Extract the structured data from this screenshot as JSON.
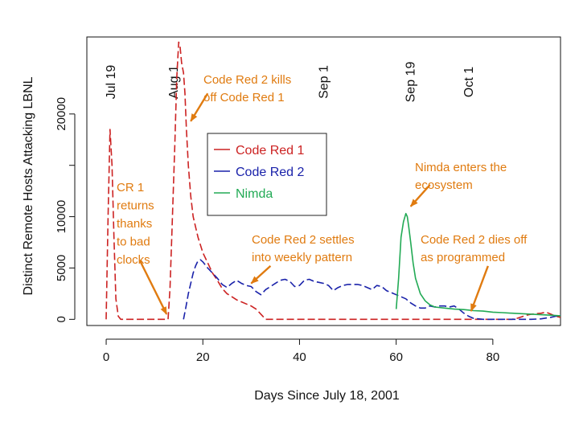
{
  "chart_data": {
    "type": "line",
    "title": "",
    "xlabel": "Days Since July 18, 2001",
    "ylabel": "Distinct Remote Hosts Attacking LBNL",
    "xlim": [
      -4,
      94
    ],
    "ylim": [
      -600,
      27500
    ],
    "x_ticks": [
      0,
      20,
      40,
      60,
      80
    ],
    "y_ticks": [
      0,
      5000,
      10000,
      15000,
      20000
    ],
    "y_tick_labels": [
      "0",
      "5000",
      "10000",
      "",
      "20000"
    ],
    "colors": {
      "axis": "#111111",
      "annotation": "#e07b10",
      "red": "#cc2222",
      "blue": "#1a22aa",
      "green": "#22aa55"
    },
    "series": [
      {
        "name": "Code Red 1",
        "color": "#cc2222",
        "style": "dashed",
        "x": [
          0,
          0.4,
          0.8,
          1.2,
          1.6,
          2.0,
          2.5,
          3,
          5,
          8,
          10,
          12,
          12.8,
          13.2,
          13.6,
          14.2,
          14.6,
          15.0,
          15.3,
          15.6,
          16.0,
          16.3,
          16.6,
          17.0,
          17.5,
          18,
          19,
          20,
          21,
          22,
          23,
          24,
          25,
          26,
          27,
          28,
          29,
          30,
          31,
          32,
          33,
          40,
          50,
          60,
          70,
          80,
          84,
          85,
          86,
          87,
          88,
          89,
          90,
          91,
          92,
          93,
          94
        ],
        "y": [
          0,
          10000,
          18500,
          15000,
          8000,
          2000,
          300,
          0,
          0,
          0,
          0,
          0,
          0,
          3000,
          8500,
          17000,
          23500,
          27000,
          26500,
          25000,
          24000,
          22000,
          18500,
          15000,
          12000,
          10000,
          8000,
          6500,
          5500,
          4500,
          3800,
          3000,
          2500,
          2200,
          1900,
          1700,
          1500,
          1300,
          1000,
          500,
          0,
          0,
          0,
          0,
          0,
          0,
          0,
          100,
          250,
          400,
          500,
          550,
          600,
          700,
          500,
          300,
          200
        ]
      },
      {
        "name": "Code Red 2",
        "color": "#1a22aa",
        "style": "dashed",
        "x": [
          16,
          16.5,
          17,
          17.5,
          18,
          18.5,
          19,
          19.5,
          20,
          20.5,
          21,
          22,
          23,
          24,
          25,
          26,
          27,
          28,
          29,
          30,
          31,
          32,
          33,
          34,
          35,
          36,
          37,
          38,
          39,
          40,
          41,
          42,
          43,
          44,
          45,
          46,
          47,
          48,
          49,
          50,
          51,
          52,
          53,
          54,
          55,
          56,
          57,
          58,
          59,
          60,
          61,
          62,
          63,
          64,
          65,
          66,
          67,
          68,
          69,
          70,
          71,
          72,
          73,
          74,
          75,
          76,
          78,
          80,
          82,
          84,
          86,
          88,
          90,
          92,
          94
        ],
        "y": [
          0,
          1200,
          2500,
          3500,
          4500,
          5200,
          5700,
          5800,
          5600,
          5300,
          5000,
          4500,
          4000,
          3400,
          3100,
          3500,
          3800,
          3500,
          3300,
          3200,
          2700,
          2400,
          2900,
          3200,
          3500,
          3800,
          3900,
          3700,
          3200,
          3300,
          3800,
          3900,
          3700,
          3600,
          3500,
          3300,
          2800,
          3100,
          3300,
          3400,
          3400,
          3400,
          3300,
          3100,
          2900,
          3300,
          3200,
          2800,
          2600,
          2400,
          2200,
          2000,
          1600,
          1300,
          1100,
          1100,
          1300,
          1200,
          1300,
          1300,
          1200,
          1300,
          1000,
          600,
          300,
          100,
          0,
          0,
          0,
          0,
          0,
          0,
          50,
          200,
          400
        ]
      },
      {
        "name": "Nimda",
        "color": "#22aa55",
        "style": "solid",
        "x": [
          60,
          60.5,
          61,
          61.5,
          62,
          62.3,
          62.6,
          63,
          63.5,
          64,
          65,
          66,
          67,
          68,
          70,
          72,
          74,
          75,
          76,
          78,
          80,
          82,
          84,
          86,
          88,
          90,
          92,
          94
        ],
        "y": [
          1000,
          4000,
          8000,
          9500,
          10300,
          10000,
          9000,
          7500,
          5500,
          4000,
          2500,
          1800,
          1400,
          1200,
          1100,
          1000,
          950,
          900,
          850,
          800,
          700,
          650,
          600,
          550,
          500,
          450,
          400,
          350
        ]
      }
    ],
    "legend": {
      "position": "center-right",
      "entries": [
        {
          "label": "Code Red 1",
          "color": "#cc2222"
        },
        {
          "label": "Code Red 2",
          "color": "#1a22aa"
        },
        {
          "label": "Nimda",
          "color": "#22aa55"
        }
      ]
    },
    "date_markers": [
      {
        "label": "Jul 19",
        "day": 1
      },
      {
        "label": "Aug 1",
        "day": 14
      },
      {
        "label": "Sep 1",
        "day": 45
      },
      {
        "label": "Sep 19",
        "day": 63
      },
      {
        "label": "Oct 1",
        "day": 75
      }
    ],
    "annotations": [
      {
        "lines": [
          "Code Red 2 kills",
          "off Code Red 1"
        ],
        "arrow_from": [
          21,
          22000
        ],
        "arrow_to": [
          17.5,
          19300
        ]
      },
      {
        "lines": [
          "CR 1",
          "returns",
          "thanks",
          "to bad",
          "clocks"
        ],
        "arrow_from": [
          7,
          5700
        ],
        "arrow_to": [
          12.5,
          500
        ]
      },
      {
        "lines": [
          "Code Red 2 settles",
          "into weekly pattern"
        ],
        "arrow_from": [
          34,
          5200
        ],
        "arrow_to": [
          30,
          3500
        ]
      },
      {
        "lines": [
          "Nimda enters the",
          "ecosystem"
        ],
        "arrow_from": [
          67,
          13100
        ],
        "arrow_to": [
          63,
          11000
        ]
      },
      {
        "lines": [
          "Code Red 2 dies off",
          "as programmed"
        ],
        "arrow_from": [
          79,
          5200
        ],
        "arrow_to": [
          75.5,
          800
        ]
      }
    ]
  }
}
